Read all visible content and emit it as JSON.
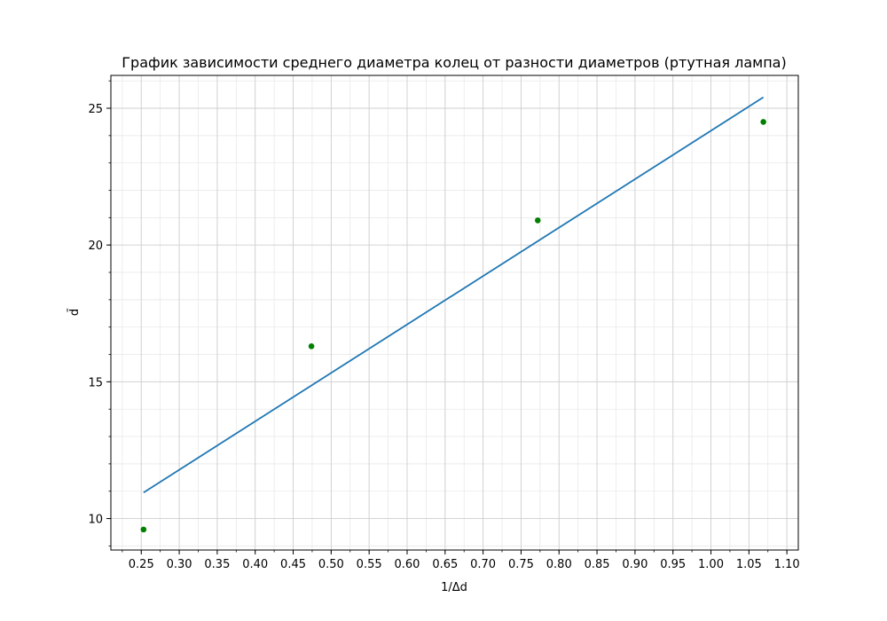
{
  "chart_data": {
    "type": "scatter",
    "title": "График зависимости среднего диаметра колец от разности диаметров (ртутная лампа)",
    "xlabel": "1/Δd",
    "ylabel": "d̄",
    "xlim": [
      0.21,
      1.115
    ],
    "ylim": [
      8.85,
      26.2
    ],
    "x_ticks": [
      "0.25",
      "0.30",
      "0.35",
      "0.40",
      "0.45",
      "0.50",
      "0.55",
      "0.60",
      "0.65",
      "0.70",
      "0.75",
      "0.80",
      "0.85",
      "0.90",
      "0.95",
      "1.00",
      "1.05",
      "1.10"
    ],
    "y_ticks": [
      "10",
      "15",
      "20",
      "25"
    ],
    "grid": true,
    "series": [
      {
        "kind": "scatter",
        "color": "#008000",
        "points": [
          {
            "x": 0.253,
            "y": 9.6
          },
          {
            "x": 0.474,
            "y": 16.3
          },
          {
            "x": 0.772,
            "y": 20.9
          },
          {
            "x": 1.069,
            "y": 24.5
          }
        ]
      },
      {
        "kind": "line",
        "color": "#1f77b4",
        "points": [
          {
            "x": 0.253,
            "y": 10.95
          },
          {
            "x": 1.069,
            "y": 25.4
          }
        ]
      }
    ]
  }
}
